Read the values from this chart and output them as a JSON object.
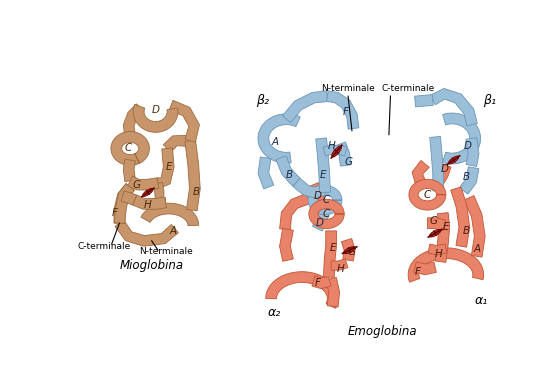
{
  "title_left": "Mioglobina",
  "title_right": "Emoglobina",
  "label_left_c": "C-terminale",
  "label_left_n": "N-terminale",
  "label_right_top_n": "N-terminale",
  "label_right_top_c": "C-terminale",
  "beta2": "β₂",
  "beta1": "β₁",
  "alpha2": "α₂",
  "alpha1": "α₁",
  "bg_color": "#ffffff",
  "myoglobin_color": "#C8956A",
  "myoglobin_edge": "#9B6B42",
  "hemo_blue_color": "#9BBFD9",
  "hemo_blue_edge": "#6A95B5",
  "hemo_orange_color": "#E8836A",
  "hemo_orange_edge": "#C05535",
  "heme_color": "#8B1A1A",
  "heme_edge": "#5A0000",
  "figure_width": 5.56,
  "figure_height": 3.84
}
